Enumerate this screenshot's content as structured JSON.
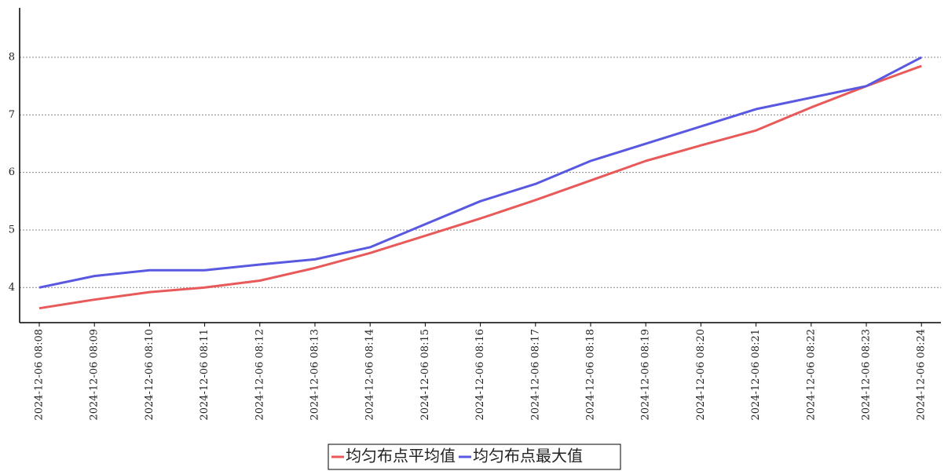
{
  "chart_data": {
    "type": "line",
    "categories": [
      "2024-12-06 08:08",
      "2024-12-06 08:09",
      "2024-12-06 08:10",
      "2024-12-06 08:11",
      "2024-12-06 08:12",
      "2024-12-06 08:13",
      "2024-12-06 08:14",
      "2024-12-06 08:15",
      "2024-12-06 08:16",
      "2024-12-06 08:17",
      "2024-12-06 08:18",
      "2024-12-06 08:19",
      "2024-12-06 08:20",
      "2024-12-06 08:21",
      "2024-12-06 08:22",
      "2024-12-06 08:23",
      "2024-12-06 08:24"
    ],
    "series": [
      {
        "name": "均匀布点平均值",
        "color": "#e85a5a",
        "values": [
          3.64,
          3.79,
          3.92,
          4.0,
          4.12,
          4.34,
          4.6,
          4.9,
          5.2,
          5.52,
          5.86,
          6.2,
          6.47,
          6.73,
          7.13,
          7.5,
          7.85
        ]
      },
      {
        "name": "均匀布点最大值",
        "color": "#5858e0",
        "values": [
          4.0,
          4.2,
          4.3,
          4.3,
          4.4,
          4.49,
          4.7,
          5.1,
          5.5,
          5.8,
          6.2,
          6.5,
          6.8,
          7.1,
          7.3,
          7.5,
          8.0
        ]
      }
    ],
    "ylim": [
      3.39,
      8.86
    ],
    "yticks": [
      4,
      5,
      6,
      7,
      8
    ],
    "grid": true,
    "legend": "bottom"
  }
}
